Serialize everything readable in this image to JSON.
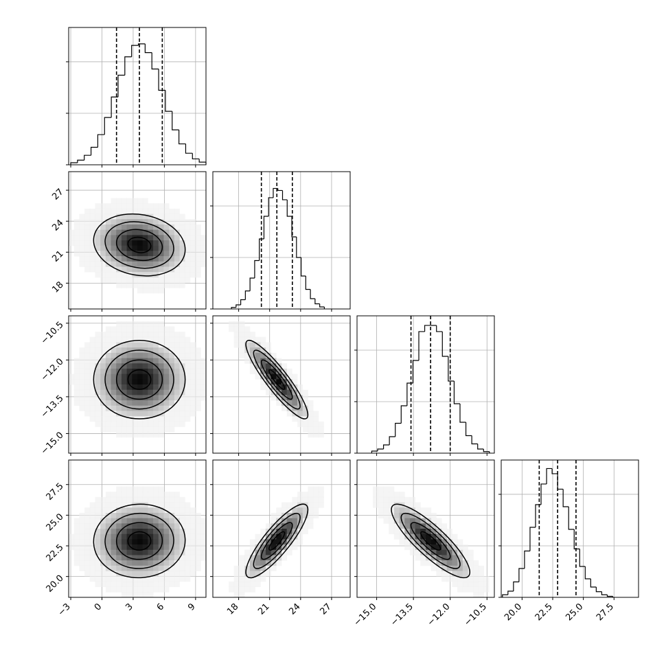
{
  "chart_data": {
    "type": "corner",
    "grid": true,
    "hist_ylim": [
      0,
      1333
    ],
    "hist_yticks": [
      0,
      500,
      1000
    ],
    "contour_levels": [
      0.5,
      1,
      1.5,
      2
    ],
    "correlations": [
      [
        -0.15
      ],
      [
        0.0,
        -0.9
      ],
      [
        0.02,
        0.85,
        -0.85
      ]
    ],
    "params": [
      {
        "xlim": [
          -3.2,
          10.0
        ],
        "ticks": [
          {
            "value": -3,
            "label": "−3"
          },
          0,
          3,
          6,
          9
        ],
        "bins": [
          -3.0,
          -2.35,
          -1.7,
          -1.05,
          -0.4,
          0.25,
          0.9,
          1.55,
          2.2,
          2.85,
          3.5,
          4.15,
          4.8,
          5.45,
          6.1,
          6.75,
          7.4,
          8.05,
          8.7,
          9.35,
          10.0
        ],
        "counts": [
          20,
          45,
          92,
          170,
          293,
          459,
          658,
          870,
          1048,
          1159,
          1174,
          1089,
          930,
          723,
          519,
          339,
          203,
          112,
          57,
          26
        ],
        "quantiles": [
          1.4,
          3.6,
          5.8
        ],
        "mean": 3.6,
        "sd": 2.2
      },
      {
        "xlim": [
          15.5,
          28.8
        ],
        "ticks": [
          18,
          21,
          24,
          27
        ],
        "bins": [
          17.3,
          17.75,
          18.2,
          18.65,
          19.1,
          19.55,
          20.0,
          20.45,
          20.9,
          21.35,
          21.8,
          22.25,
          22.7,
          23.15,
          23.6,
          24.05,
          24.5,
          24.95,
          25.4,
          25.85,
          26.3
        ],
        "counts": [
          15,
          40,
          90,
          175,
          300,
          470,
          680,
          900,
          1080,
          1170,
          1150,
          1060,
          900,
          700,
          500,
          320,
          190,
          100,
          50,
          20
        ],
        "quantiles": [
          20.2,
          21.7,
          23.2
        ],
        "mean": 21.7,
        "sd": 1.5
      },
      {
        "xlim": [
          -15.8,
          -10.2
        ],
        "ticks": [
          {
            "value": -15,
            "label": "−15.0"
          },
          {
            "value": -13.5,
            "label": "−13.5"
          },
          {
            "value": -12,
            "label": "−12.0"
          },
          {
            "value": -10.5,
            "label": "−10.5"
          }
        ],
        "bins": [
          -15.2,
          -14.96,
          -14.72,
          -14.48,
          -14.24,
          -14.0,
          -13.76,
          -13.52,
          -13.28,
          -13.04,
          -12.8,
          -12.56,
          -12.32,
          -12.08,
          -11.84,
          -11.6,
          -11.36,
          -11.12,
          -10.88,
          -10.64,
          -10.4
        ],
        "counts": [
          20,
          40,
          80,
          160,
          290,
          460,
          680,
          900,
          1180,
          1240,
          1240,
          1180,
          940,
          700,
          480,
          300,
          170,
          90,
          40,
          15
        ],
        "quantiles": [
          -13.6,
          -12.8,
          -12.0
        ],
        "mean": -12.8,
        "sd": 0.8
      },
      {
        "xlim": [
          18.3,
          29.5
        ],
        "ticks": [
          {
            "value": 20,
            "label": "20.0"
          },
          {
            "value": 22.5,
            "label": "22.5"
          },
          {
            "value": 25,
            "label": "25.0"
          },
          {
            "value": 27.5,
            "label": "27.5"
          }
        ],
        "bins": [
          18.4,
          18.85,
          19.3,
          19.75,
          20.2,
          20.65,
          21.1,
          21.55,
          22.0,
          22.45,
          22.9,
          23.35,
          23.8,
          24.25,
          24.7,
          25.15,
          25.6,
          26.05,
          26.5,
          26.95,
          27.4
        ],
        "counts": [
          25,
          60,
          150,
          280,
          450,
          680,
          900,
          1100,
          1250,
          1200,
          1050,
          880,
          660,
          470,
          300,
          180,
          100,
          55,
          25,
          10
        ],
        "quantiles": [
          21.4,
          22.9,
          24.4
        ],
        "mean": 22.9,
        "sd": 1.5
      }
    ]
  }
}
